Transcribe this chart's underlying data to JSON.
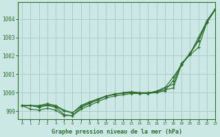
{
  "title": "Graphe pression niveau de la mer (hPa)",
  "bg_color": "#cce8e4",
  "grid_color": "#aaccca",
  "line_color": "#2d6e2d",
  "xlim": [
    -0.5,
    23
  ],
  "ylim": [
    998.55,
    1004.9
  ],
  "yticks": [
    999,
    1000,
    1001,
    1002,
    1003,
    1004
  ],
  "xticks": [
    0,
    1,
    2,
    3,
    4,
    5,
    6,
    7,
    8,
    9,
    10,
    11,
    12,
    13,
    14,
    15,
    16,
    17,
    18,
    19,
    20,
    21,
    22,
    23
  ],
  "series": [
    [
      999.3,
      999.3,
      999.2,
      999.3,
      999.2,
      998.8,
      998.75,
      999.2,
      999.4,
      999.6,
      999.8,
      999.9,
      1000.0,
      1000.05,
      1000.0,
      1000.0,
      1000.05,
      1000.15,
      1000.25,
      1001.55,
      1002.1,
      1003.0,
      1003.85,
      1004.5
    ],
    [
      999.3,
      999.1,
      999.05,
      999.15,
      999.05,
      998.75,
      998.75,
      999.1,
      999.3,
      999.5,
      999.7,
      999.82,
      999.88,
      999.95,
      999.95,
      999.95,
      1000.0,
      1000.1,
      1000.65,
      1001.6,
      1002.05,
      1002.45,
      1003.8,
      1004.5
    ],
    [
      999.3,
      999.3,
      999.25,
      999.35,
      999.25,
      999.0,
      998.9,
      999.25,
      999.45,
      999.65,
      999.8,
      999.92,
      999.96,
      1000.0,
      999.98,
      999.98,
      1000.05,
      1000.25,
      1000.85,
      1001.5,
      1002.1,
      1002.8,
      1003.8,
      1004.5
    ],
    [
      999.3,
      999.3,
      999.3,
      999.4,
      999.3,
      999.05,
      998.9,
      999.3,
      999.5,
      999.65,
      999.82,
      999.92,
      999.98,
      1000.02,
      999.98,
      999.98,
      1000.08,
      1000.28,
      1000.45,
      1001.55,
      1002.15,
      1002.85,
      1003.9,
      1004.55
    ]
  ]
}
